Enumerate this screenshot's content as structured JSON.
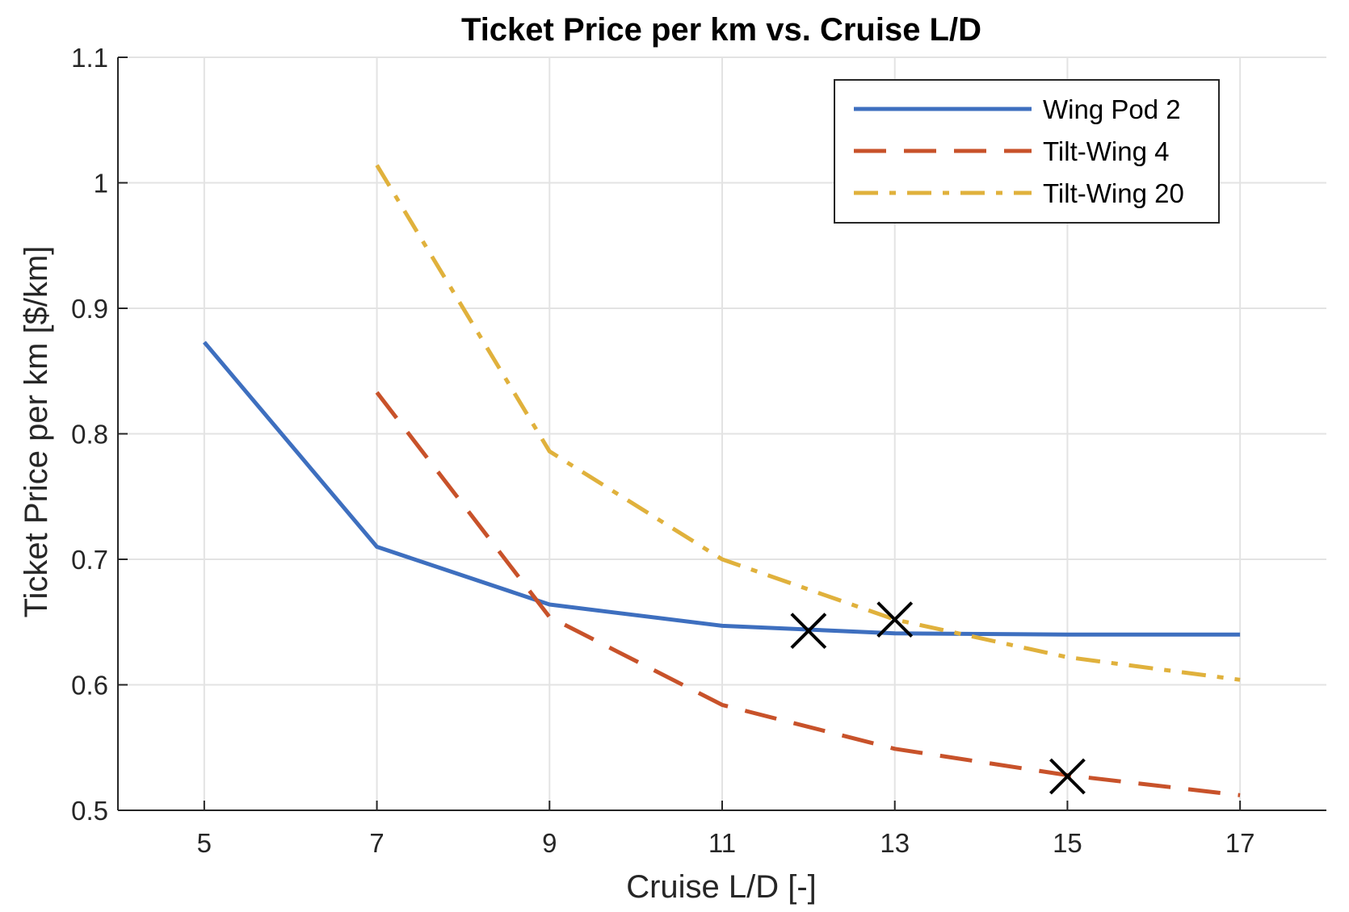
{
  "chart_data": {
    "type": "line",
    "title": "Ticket Price per km vs. Cruise L/D",
    "xlabel": "Cruise L/D [-]",
    "ylabel": "Ticket Price per km [$/km]",
    "xlim": [
      4,
      18
    ],
    "ylim": [
      0.5,
      1.1
    ],
    "xticks": [
      5,
      7,
      9,
      11,
      13,
      15,
      17
    ],
    "yticks": [
      0.5,
      0.6,
      0.7,
      0.8,
      0.9,
      1,
      1.1
    ],
    "ytick_labels": [
      "0.5",
      "0.6",
      "0.7",
      "0.8",
      "0.9",
      "1",
      "1.1"
    ],
    "grid": true,
    "legend_position": "top-right",
    "series": [
      {
        "name": "Wing Pod 2",
        "color": "#3e6fbf",
        "style": "solid",
        "x": [
          5,
          7,
          9,
          11,
          13,
          15,
          17
        ],
        "y": [
          0.873,
          0.71,
          0.664,
          0.647,
          0.641,
          0.64,
          0.64
        ]
      },
      {
        "name": "Tilt-Wing 4",
        "color": "#c8522a",
        "style": "dashed",
        "x": [
          7,
          9,
          11,
          13,
          15,
          17
        ],
        "y": [
          0.833,
          0.654,
          0.584,
          0.549,
          0.528,
          0.512
        ]
      },
      {
        "name": "Tilt-Wing 20",
        "color": "#e0b13c",
        "style": "dashdot",
        "x": [
          7,
          9,
          11,
          13,
          15,
          17
        ],
        "y": [
          1.014,
          0.786,
          0.7,
          0.652,
          0.622,
          0.604
        ]
      }
    ],
    "markers": [
      {
        "x": 12,
        "y": 0.643,
        "symbol": "x"
      },
      {
        "x": 13,
        "y": 0.652,
        "symbol": "x"
      },
      {
        "x": 15,
        "y": 0.527,
        "symbol": "x"
      }
    ]
  }
}
